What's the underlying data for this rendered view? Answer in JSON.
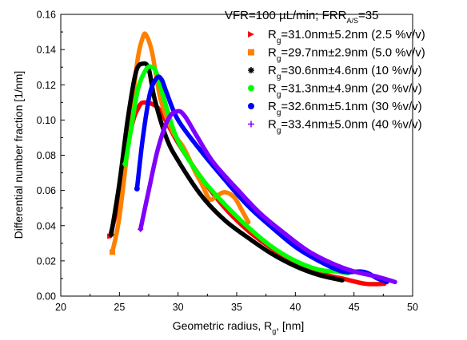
{
  "chart_data": {
    "type": "line",
    "xlabel": "Geometric radius, R",
    "xlabel_sub": "g",
    "xlabel_suffix": ", [nm]",
    "ylabel": "Differential number fraction [1/nm]",
    "xlim": [
      20,
      50
    ],
    "ylim": [
      0,
      0.16
    ],
    "x_ticks": [
      20,
      25,
      30,
      35,
      40,
      45,
      50
    ],
    "x_tick_labels": [
      "20",
      "25",
      "30",
      "35",
      "40",
      "45",
      "50"
    ],
    "y_ticks": [
      0,
      0.02,
      0.04,
      0.06,
      0.08,
      0.1,
      0.12,
      0.14,
      0.16
    ],
    "y_tick_labels": [
      "0.00",
      "0.02",
      "0.04",
      "0.06",
      "0.08",
      "0.10",
      "0.12",
      "0.14",
      "0.16"
    ],
    "legend": {
      "placement": "top-right",
      "title_main": "VFR=100 µL/min; FRR",
      "title_sub": "A/S",
      "title_suffix": "=35"
    },
    "series": [
      {
        "name": "R",
        "name_sub": "g",
        "label": "=31.0nm±5.2nm (2.5 %v/v)",
        "color": "#ff0000",
        "marker": "triangle-right",
        "x": [
          24.2,
          25,
          26,
          26.7,
          27.2,
          27.8,
          28.5,
          30,
          32,
          34,
          36,
          38,
          40,
          42,
          44,
          46,
          47.6
        ],
        "y": [
          0.034,
          0.056,
          0.095,
          0.108,
          0.11,
          0.109,
          0.105,
          0.087,
          0.067,
          0.05,
          0.037,
          0.027,
          0.018,
          0.013,
          0.01,
          0.007,
          0.007
        ]
      },
      {
        "name": "R",
        "name_sub": "g",
        "label": "=29.7nm±2.9nm (5.0 %v/v)",
        "color": "#ff8000",
        "marker": "square",
        "x": [
          24.4,
          25,
          25.8,
          26.5,
          27.0,
          27.3,
          27.8,
          28.5,
          29.5,
          30.5,
          31.5,
          32.0,
          32.7,
          33.3,
          34.0,
          34.8,
          35.5,
          36.0
        ],
        "y": [
          0.025,
          0.045,
          0.09,
          0.132,
          0.147,
          0.148,
          0.138,
          0.112,
          0.094,
          0.084,
          0.07,
          0.064,
          0.055,
          0.057,
          0.059,
          0.056,
          0.048,
          0.042
        ]
      },
      {
        "name": "R",
        "name_sub": "g",
        "label": "=30.6nm±4.6nm (10 %v/v)",
        "color": "#000000",
        "marker": "star",
        "x": [
          24.3,
          25,
          25.7,
          26.4,
          27.0,
          27.5,
          28.0,
          29,
          30,
          32,
          34,
          36,
          38,
          40,
          42,
          44
        ],
        "y": [
          0.035,
          0.064,
          0.1,
          0.127,
          0.132,
          0.129,
          0.112,
          0.09,
          0.077,
          0.057,
          0.043,
          0.033,
          0.024,
          0.017,
          0.012,
          0.009
        ]
      },
      {
        "name": "R",
        "name_sub": "g",
        "label": "=31.3nm±4.9nm (20 %v/v)",
        "color": "#00ff00",
        "marker": "circle",
        "x": [
          25.5,
          26.0,
          26.6,
          27.3,
          27.8,
          28.2,
          28.8,
          30,
          32,
          34,
          36,
          38,
          40,
          42,
          43.5,
          44.5
        ],
        "y": [
          0.075,
          0.095,
          0.118,
          0.129,
          0.13,
          0.126,
          0.112,
          0.088,
          0.067,
          0.052,
          0.039,
          0.028,
          0.02,
          0.015,
          0.014,
          0.013
        ]
      },
      {
        "name": "R",
        "name_sub": "g",
        "label": "=32.6nm±5.1nm (30 %v/v)",
        "color": "#0000ff",
        "marker": "circle",
        "x": [
          26.5,
          27.0,
          27.6,
          28.2,
          28.6,
          29.0,
          30,
          32,
          34,
          36,
          38,
          40,
          42,
          44,
          45.5,
          46.2,
          47.0,
          47.8
        ],
        "y": [
          0.061,
          0.09,
          0.115,
          0.124,
          0.123,
          0.116,
          0.1,
          0.082,
          0.066,
          0.051,
          0.039,
          0.028,
          0.02,
          0.014,
          0.014,
          0.013,
          0.01,
          0.008
        ]
      },
      {
        "name": "R",
        "name_sub": "g",
        "label": "=33.4nm±5.0nm (40 %v/v)",
        "color": "#8000ff",
        "marker": "plus",
        "x": [
          26.8,
          27.5,
          28.3,
          29.2,
          30.0,
          30.6,
          31.5,
          33,
          35,
          37,
          39,
          41,
          43,
          45,
          47,
          48.5
        ],
        "y": [
          0.038,
          0.06,
          0.084,
          0.101,
          0.105,
          0.102,
          0.092,
          0.076,
          0.061,
          0.047,
          0.036,
          0.026,
          0.019,
          0.014,
          0.011,
          0.008
        ]
      }
    ]
  }
}
